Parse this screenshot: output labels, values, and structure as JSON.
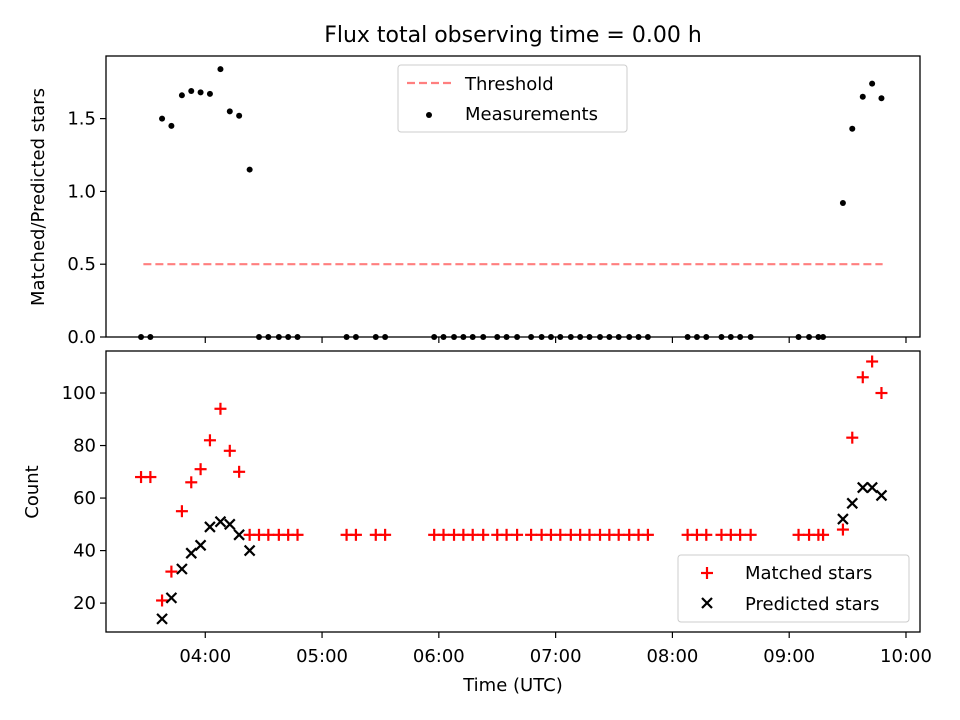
{
  "figure": {
    "title": "Flux total observing time = 0.00 h",
    "xlabel": "Time (UTC)",
    "xticks": [
      {
        "value": 4,
        "label": "04:00"
      },
      {
        "value": 5,
        "label": "05:00"
      },
      {
        "value": 6,
        "label": "06:00"
      },
      {
        "value": 7,
        "label": "07:00"
      },
      {
        "value": 8,
        "label": "08:00"
      },
      {
        "value": 9,
        "label": "09:00"
      },
      {
        "value": 10,
        "label": "10:00"
      }
    ],
    "xlim": [
      3.15,
      10.12
    ]
  },
  "chart_data": [
    {
      "type": "scatter",
      "panel": "top",
      "ylabel": "Matched/Predicted stars",
      "ylim": [
        0,
        1.93
      ],
      "yticks": [
        0.0,
        0.5,
        1.0,
        1.5
      ],
      "ytick_labels": [
        "0.0",
        "0.5",
        "1.0",
        "1.5"
      ],
      "legend": {
        "placement": "top-center",
        "entries": [
          "Threshold",
          "Measurements"
        ]
      },
      "threshold": {
        "name": "Threshold",
        "value": 0.5,
        "x_range": [
          3.47,
          9.8
        ],
        "color": "#ff7f7f"
      },
      "series": [
        {
          "name": "Measurements",
          "color": "#000000",
          "x": [
            3.45,
            3.53,
            3.63,
            3.71,
            3.8,
            3.88,
            3.96,
            4.04,
            4.13,
            4.21,
            4.29,
            4.38,
            4.46,
            4.54,
            4.63,
            4.71,
            4.79,
            5.21,
            5.29,
            5.46,
            5.54,
            5.96,
            6.04,
            6.13,
            6.21,
            6.29,
            6.38,
            6.5,
            6.58,
            6.67,
            6.79,
            6.88,
            6.96,
            7.04,
            7.13,
            7.21,
            7.29,
            7.38,
            7.46,
            7.54,
            7.63,
            7.71,
            7.79,
            8.13,
            8.21,
            8.29,
            8.42,
            8.5,
            8.58,
            8.67,
            9.08,
            9.17,
            9.25,
            9.29,
            9.46,
            9.54,
            9.63,
            9.71,
            9.79
          ],
          "y": [
            0,
            0,
            1.5,
            1.45,
            1.66,
            1.69,
            1.68,
            1.67,
            1.84,
            1.55,
            1.52,
            1.15,
            0,
            0,
            0,
            0,
            0,
            0,
            0,
            0,
            0,
            0,
            0,
            0,
            0,
            0,
            0,
            0,
            0,
            0,
            0,
            0,
            0,
            0,
            0,
            0,
            0,
            0,
            0,
            0,
            0,
            0,
            0,
            0,
            0,
            0,
            0,
            0,
            0,
            0,
            0,
            0,
            0,
            0,
            0.92,
            1.43,
            1.65,
            1.74,
            1.64
          ]
        }
      ]
    },
    {
      "type": "scatter",
      "panel": "bottom",
      "ylabel": "Count",
      "ylim": [
        9,
        116
      ],
      "yticks": [
        20,
        40,
        60,
        80,
        100
      ],
      "ytick_labels": [
        "20",
        "40",
        "60",
        "80",
        "100"
      ],
      "legend": {
        "placement": "lower-right",
        "entries": [
          "Matched stars",
          "Predicted stars"
        ]
      },
      "series": [
        {
          "name": "Matched stars",
          "marker": "plus",
          "color": "#ff0000",
          "x": [
            3.45,
            3.53,
            3.63,
            3.71,
            3.8,
            3.88,
            3.96,
            4.04,
            4.13,
            4.21,
            4.29,
            4.38,
            4.46,
            4.54,
            4.63,
            4.71,
            4.79,
            5.21,
            5.29,
            5.46,
            5.54,
            5.96,
            6.04,
            6.13,
            6.21,
            6.29,
            6.38,
            6.5,
            6.58,
            6.67,
            6.79,
            6.88,
            6.96,
            7.04,
            7.13,
            7.21,
            7.29,
            7.38,
            7.46,
            7.54,
            7.63,
            7.71,
            7.79,
            8.13,
            8.21,
            8.29,
            8.42,
            8.5,
            8.58,
            8.67,
            9.08,
            9.17,
            9.25,
            9.29,
            9.46,
            9.54,
            9.63,
            9.71,
            9.79
          ],
          "y": [
            68,
            68,
            21,
            32,
            55,
            66,
            71,
            82,
            94,
            78,
            70,
            46,
            46,
            46,
            46,
            46,
            46,
            46,
            46,
            46,
            46,
            46,
            46,
            46,
            46,
            46,
            46,
            46,
            46,
            46,
            46,
            46,
            46,
            46,
            46,
            46,
            46,
            46,
            46,
            46,
            46,
            46,
            46,
            46,
            46,
            46,
            46,
            46,
            46,
            46,
            46,
            46,
            46,
            46,
            48,
            83,
            106,
            112,
            100
          ]
        },
        {
          "name": "Predicted stars",
          "marker": "x",
          "color": "#000000",
          "x": [
            3.63,
            3.71,
            3.8,
            3.88,
            3.96,
            4.04,
            4.13,
            4.21,
            4.29,
            4.38,
            9.46,
            9.54,
            9.63,
            9.71,
            9.79
          ],
          "y": [
            14,
            22,
            33,
            39,
            42,
            49,
            51,
            50,
            46,
            40,
            52,
            58,
            64,
            64,
            61
          ]
        }
      ]
    }
  ]
}
